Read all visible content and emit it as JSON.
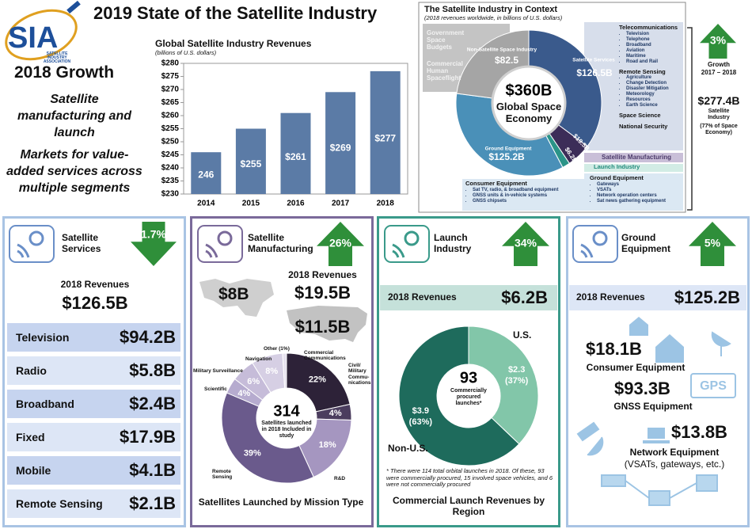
{
  "header": {
    "logo": "SIA",
    "logo_subtitle": "SATELLITE INDUSTRY ASSOCIATION",
    "title": "2019 State of the Satellite Industry"
  },
  "growth": {
    "title": "2018 Growth",
    "points": [
      "Satellite manufacturing and launch",
      "Markets for value-added services across multiple segments"
    ]
  },
  "chart_data": [
    {
      "type": "bar",
      "title": "Global Satellite Industry Revenues",
      "subtitle": "(billions of U.S. dollars)",
      "categories": [
        "2014",
        "2015",
        "2016",
        "2017",
        "2018"
      ],
      "values": [
        246,
        255,
        261,
        269,
        277
      ],
      "value_labels": [
        "246",
        "$255",
        "$261",
        "$269",
        "$277"
      ],
      "color": "#5b7ba6",
      "ylim": [
        230,
        280
      ],
      "yticks": [
        {
          "value": 230,
          "label": "$230"
        },
        {
          "value": 235,
          "label": "$235"
        },
        {
          "value": 240,
          "label": "$240"
        },
        {
          "value": 245,
          "label": "$245"
        },
        {
          "value": 250,
          "label": "$250"
        },
        {
          "value": 255,
          "label": "$255"
        },
        {
          "value": 260,
          "label": "$260"
        },
        {
          "value": 265,
          "label": "$265"
        },
        {
          "value": 270,
          "label": "$270"
        },
        {
          "value": 275,
          "label": "$275"
        },
        {
          "value": 280,
          "label": "$280"
        }
      ],
      "grid": false
    },
    {
      "type": "pie",
      "title": "The Satellite Industry in Context",
      "subtitle": "(2018 revenues worldwide, in billions of U.S. dollars)",
      "categories": [
        "Satellite Services",
        "Satellite Manufacturing",
        "Launch Industry",
        "Ground Equipment",
        "Non-Satellite Space Industry"
      ],
      "values": [
        126.5,
        19.5,
        6.2,
        125.2,
        82.5
      ],
      "value_labels": [
        "$126.5B",
        "$19.5B",
        "$6.2B",
        "$125.2B",
        "$82.5"
      ],
      "colors": [
        "#3a5a8c",
        "#3c2d58",
        "#2b9488",
        "#4a90b8",
        "#a5a5a5"
      ],
      "center_value": "$360B",
      "center_label": "Global Space Economy"
    },
    {
      "type": "donut",
      "title": "Satellites Launched by Mission Type",
      "categories": [
        "Commercial Communications",
        "Civil/ Military Commu- nications",
        "R&D",
        "Remote Sensing",
        "Scientific",
        "Military Surveillance",
        "Navigation",
        "Other (1%)"
      ],
      "values": [
        22,
        4,
        18,
        39,
        4,
        6,
        8,
        1
      ],
      "value_labels": [
        "22%",
        "4%",
        "18%",
        "39%",
        "4%",
        "6%",
        "8%",
        null
      ],
      "colors": [
        "#2d2238",
        "#4b3d5e",
        "#a596c0",
        "#6a5a8c",
        "#b6abcf",
        "#c6bcd9",
        "#d6cfe4",
        "#e6e1ee"
      ],
      "center_value": "314",
      "center_label": "Satellites launched in 2018 Included in study"
    },
    {
      "type": "donut",
      "title": "Commercial Launch Revenues by Region",
      "categories": [
        "U.S.",
        "Non-U.S."
      ],
      "values": [
        2.3,
        3.9
      ],
      "value_labels": [
        "$2.3",
        "$3.9"
      ],
      "shares": [
        37,
        63
      ],
      "share_labels": [
        "(37%)",
        "(63%)"
      ],
      "colors": [
        "#82c6a9",
        "#1e6b5c"
      ],
      "center_value": "93",
      "center_label": "Commercially procured launches*",
      "note": "* There were 114 total orbital launches in 2018. Of these, 93 were commercially procured, 15 involved space vehicles, and 6 were not commercially procured"
    }
  ],
  "context": {
    "government_box": [
      "Government Space Budgets",
      "Commercial Human Spaceflight"
    ],
    "segments": [
      {
        "title": "Telecommunications",
        "items": [
          "Television",
          "Telephone",
          "Broadband",
          "Aviation",
          "Maritime",
          "Road and Rail"
        ]
      },
      {
        "title": "Remote Sensing",
        "items": [
          "Agriculture",
          "Change Detection",
          "Disaster Mitigation",
          "Meteorology",
          "Resources",
          "Earth Science"
        ]
      },
      {
        "title": "Space Science",
        "items": []
      },
      {
        "title": "National Security",
        "items": []
      }
    ],
    "ground": {
      "title": "Ground Equipment",
      "items": [
        "Gateways",
        "VSATs",
        "Network operation centers",
        "Sat news gathering equipment"
      ]
    },
    "consumer": {
      "title": "Consumer Equipment",
      "items": [
        "Sat TV, radio, & broadband equipment",
        "GNSS units & in-vehicle systems",
        "GNSS chipsets"
      ]
    },
    "side": {
      "growth": "3%",
      "growth_label": "Growth",
      "growth_period": "2017 – 2018",
      "industry_value": "$277.4B",
      "industry_label": "Satellite Industry",
      "industry_share": "(77% of Space Economy)"
    }
  },
  "panels": {
    "services": {
      "title": "Satellite Services",
      "growth": "1.7%",
      "revenues_label": "2018 Revenues",
      "revenues": "$126.5B",
      "rows": [
        [
          "Television",
          "$94.2B"
        ],
        [
          "Radio",
          "$5.8B"
        ],
        [
          "Broadband",
          "$2.4B"
        ],
        [
          "Fixed",
          "$17.9B"
        ],
        [
          "Mobile",
          "$4.1B"
        ],
        [
          "Remote Sensing",
          "$2.1B"
        ]
      ]
    },
    "manufacturing": {
      "title": "Satellite Manufacturing",
      "growth": "26%",
      "revenues_label": "2018 Revenues",
      "revenues": "$19.5B",
      "regions": [
        "$8B",
        "$11.5B"
      ]
    },
    "launch": {
      "title": "Launch Industry",
      "growth": "34%",
      "revenues_label": "2018 Revenues",
      "revenues": "$6.2B"
    },
    "ground": {
      "title": "Ground Equipment",
      "growth": "5%",
      "revenues_label": "2018 Revenues",
      "revenues": "$125.2B",
      "gps": "GPS",
      "items": [
        {
          "value": "$18.1B",
          "label": "Consumer Equipment"
        },
        {
          "value": "$93.3B",
          "label": "GNSS Equipment"
        },
        {
          "value": "$13.8B",
          "label": "Network Equipment",
          "detail": "(VSATs, gateways, etc.)"
        }
      ]
    }
  }
}
